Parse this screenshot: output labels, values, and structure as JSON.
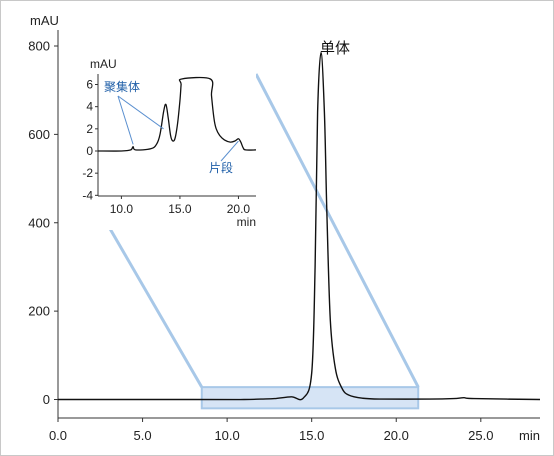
{
  "chart_data": [
    {
      "type": "line",
      "title": "",
      "xlabel": "",
      "ylabel": "",
      "x_unit": "min",
      "y_unit": "mAU",
      "xlim": [
        0,
        28.5
      ],
      "ylim": [
        -20,
        820
      ],
      "xticks": [
        "0.0",
        "5.0",
        "10.0",
        "15.0",
        "20.0",
        "25.0"
      ],
      "yticks": [
        "0",
        "200",
        "400",
        "600",
        "800"
      ],
      "series": [
        {
          "x": [
            0,
            8.0,
            11.0,
            12.0,
            12.8,
            13.8,
            14.5,
            15.0,
            15.2,
            15.35,
            15.55,
            15.75,
            15.9,
            16.1,
            16.4,
            16.8,
            17.2,
            18.0,
            19.0,
            22.0,
            23.4,
            24.0,
            24.6,
            28.5
          ],
          "y": [
            0,
            0,
            0,
            1,
            2,
            6,
            3,
            60,
            300,
            650,
            785,
            650,
            420,
            180,
            70,
            25,
            10,
            3,
            1,
            1,
            2,
            4,
            2,
            0
          ]
        }
      ],
      "highlight_region": {
        "x": [
          8.5,
          21.3
        ],
        "y": [
          -20,
          28
        ]
      },
      "annotations": [
        {
          "text": "单体",
          "x": 15.5,
          "y": 785
        }
      ]
    },
    {
      "type": "line",
      "title": "",
      "x_unit": "min",
      "y_unit": "mAU",
      "xlim": [
        8.0,
        21.5
      ],
      "ylim": [
        -4,
        6.5
      ],
      "xticks": [
        "10.0",
        "15.0",
        "20.0"
      ],
      "yticks": [
        "-4",
        "-2",
        "0",
        "2",
        "4",
        "6"
      ],
      "series": [
        {
          "x": [
            8.0,
            10.0,
            10.8,
            11.0,
            11.2,
            12.5,
            13.0,
            13.3,
            13.6,
            13.8,
            14.0,
            14.2,
            14.4,
            14.6,
            14.8,
            15.0,
            15.1,
            15.15,
            17.6,
            17.7,
            17.9,
            18.1,
            18.4,
            18.8,
            19.3,
            19.7,
            20.0,
            20.2,
            20.4,
            20.6,
            21.5
          ],
          "y": [
            0,
            0,
            0.1,
            0.4,
            0.1,
            0.2,
            0.6,
            1.5,
            3.5,
            4.2,
            3.0,
            1.4,
            0.9,
            1.2,
            2.5,
            4.5,
            6.0,
            6.5,
            6.5,
            5.0,
            3.0,
            2.0,
            1.4,
            1.0,
            0.8,
            0.9,
            1.1,
            0.8,
            0.3,
            0.1,
            0.1
          ]
        }
      ],
      "annotations": [
        {
          "text": "聚集体",
          "x": 10.2,
          "y": 5.8
        },
        {
          "text": "片段",
          "x": 19.8,
          "y": -1.5
        }
      ]
    }
  ]
}
